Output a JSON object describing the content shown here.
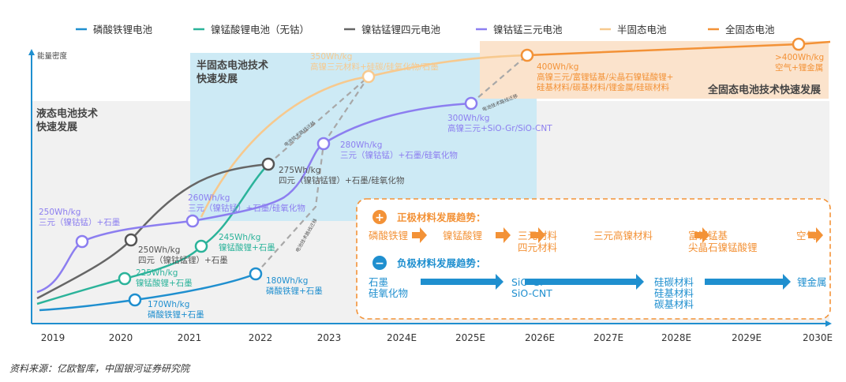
{
  "legend": [
    {
      "label": "磷酸铁锂电池",
      "color": "#1f8fcf"
    },
    {
      "label": "镍锰酸锂电池（无钴）",
      "color": "#2bb39a"
    },
    {
      "label": "镍钴锰锂四元电池",
      "color": "#666666"
    },
    {
      "label": "镍钴锰三元电池",
      "color": "#8c7ef0"
    },
    {
      "label": "半固态电池",
      "color": "#f7c98e"
    },
    {
      "label": "全固态电池",
      "color": "#f39237"
    }
  ],
  "y_axis_label": "能量密度",
  "years": [
    "2019",
    "2020",
    "2021",
    "2022",
    "2023",
    "2024E",
    "2025E",
    "2026E",
    "2027E",
    "2028E",
    "2029E",
    "2030E"
  ],
  "regions": {
    "liquid": [
      "液态电池技术",
      "快速发展"
    ],
    "semi": [
      "半固态电池技术",
      "快速发展"
    ],
    "solid": "全固态电池技术快速发展"
  },
  "migration_label": "电池技术路线迁移",
  "points": {
    "ncm250": [
      "250Wh/kg",
      "三元（镍钴锰）+石墨"
    ],
    "ncma250": [
      "250Wh/kg",
      "四元（镍钴锰锂）+石墨"
    ],
    "lnmo225": [
      "225Wh/kg",
      "镍锰酸锂+石墨"
    ],
    "lfp170": [
      "170Wh/kg",
      "磷酸铁锂+石墨"
    ],
    "ncm260": [
      "260Wh/kg",
      "三元（镍钴锰）+石墨/硅氧化物"
    ],
    "lnmo245": [
      "245Wh/kg",
      "镍锰酸锂+石墨"
    ],
    "ncma275": [
      "275Wh/kg",
      "四元（镍钴锰锂）+石墨/硅氧化物"
    ],
    "lfp180": [
      "180Wh/kg",
      "磷酸铁锂+石墨"
    ],
    "ncm280": [
      "280Wh/kg",
      "三元（镍钴锰）+石墨/硅氧化物"
    ],
    "semi350": [
      "350Wh/kg",
      "高镍三元材料+硅碳/硅氧化物/石墨"
    ],
    "ncm300": [
      "300Wh/kg",
      "高镍三元+SiO-Gr/SiO-CNT"
    ],
    "solid400": [
      "400Wh/kg",
      "高镍三元/富锂锰基/尖晶石镍锰酸锂+",
      "硅基材料/碳基材料/锂金属/硅碳材料"
    ],
    "solid400plus": [
      ">400Wh/kg",
      "空气+锂金属"
    ]
  },
  "trends": {
    "cathode_title": "正极材料发展趋势：",
    "cathode": [
      "磷酸铁锂",
      "镍锰酸锂",
      "三元材料\n四元材料",
      "三元高镍材料",
      "富锂锰基\n尖晶石镍锰酸锂",
      "空气"
    ],
    "anode_title": "负极材料发展趋势：",
    "anode": [
      "石墨\n硅氧化物",
      "SiO-Gr\nSiO-CNT",
      "硅碳材料\n硅基材料\n碳基材料",
      "锂金属"
    ],
    "plus_icon": "+",
    "minus_icon": "−"
  },
  "source": "资料来源：亿欧智库，中国银河证券研究院"
}
